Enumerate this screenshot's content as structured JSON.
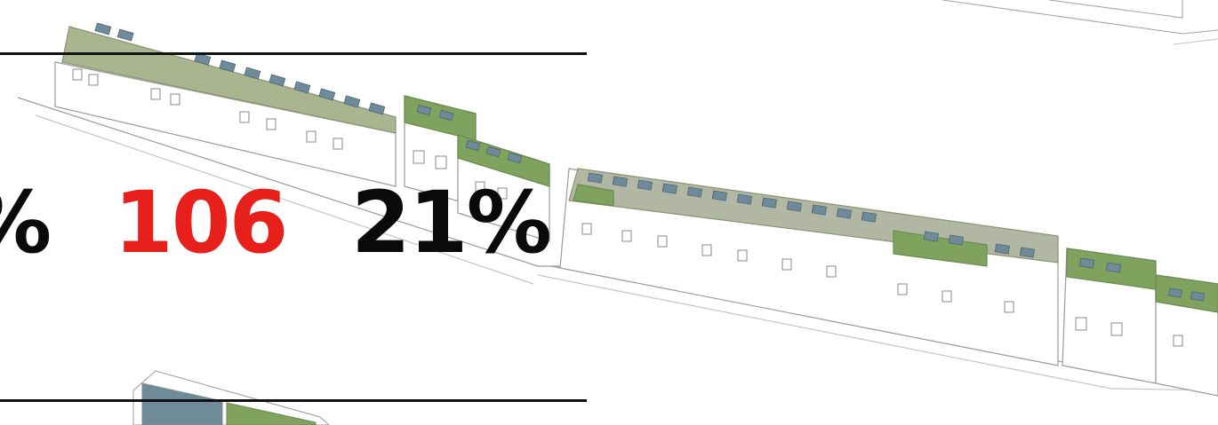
{
  "colors": {
    "stat_text": "#0a0a0a",
    "stat_highlight": "#e8201b",
    "rule": "#111111",
    "roof_green": "#7fa35e",
    "solar_panel": "#6f8a99",
    "sketch_line": "#9a9a9a"
  },
  "stats": {
    "partial": "%",
    "count": "106",
    "percent": "21%"
  }
}
